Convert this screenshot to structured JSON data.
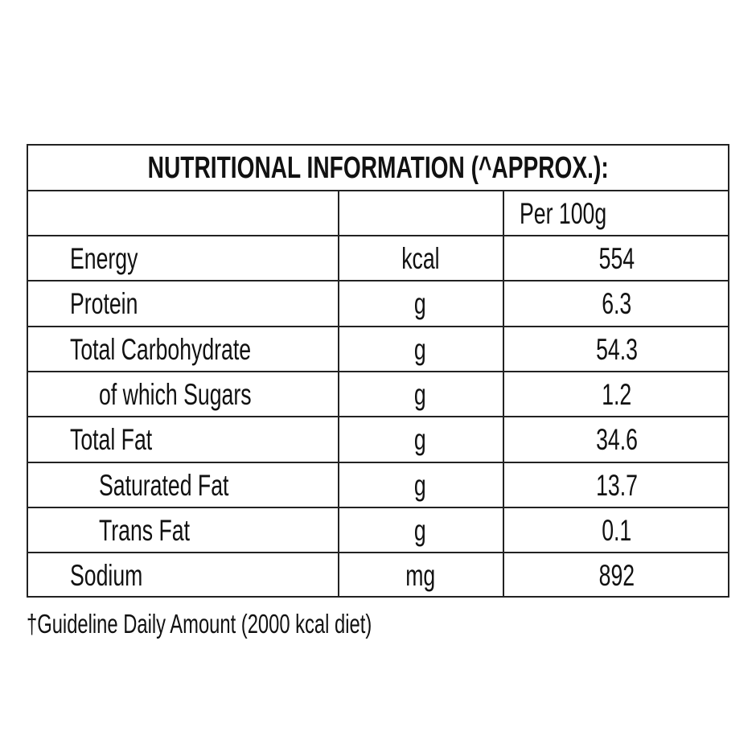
{
  "title": "NUTRITIONAL INFORMATION (^APPROX.):",
  "header": {
    "col1": "",
    "col2": "",
    "col3": "Per 100g"
  },
  "rows": [
    {
      "name": "Energy",
      "unit": "kcal",
      "value": "554",
      "indent": false
    },
    {
      "name": "Protein",
      "unit": "g",
      "value": "6.3",
      "indent": false
    },
    {
      "name": "Total Carbohydrate",
      "unit": "g",
      "value": "54.3",
      "indent": false
    },
    {
      "name": "of which Sugars",
      "unit": "g",
      "value": "1.2",
      "indent": true
    },
    {
      "name": "Total Fat",
      "unit": "g",
      "value": "34.6",
      "indent": false
    },
    {
      "name": "Saturated Fat",
      "unit": "g",
      "value": "13.7",
      "indent": true
    },
    {
      "name": "Trans Fat",
      "unit": "g",
      "value": "0.1",
      "indent": true
    },
    {
      "name": "Sodium",
      "unit": "mg",
      "value": "892",
      "indent": false
    }
  ],
  "footnote": "†Guideline Daily Amount (2000 kcal diet)"
}
